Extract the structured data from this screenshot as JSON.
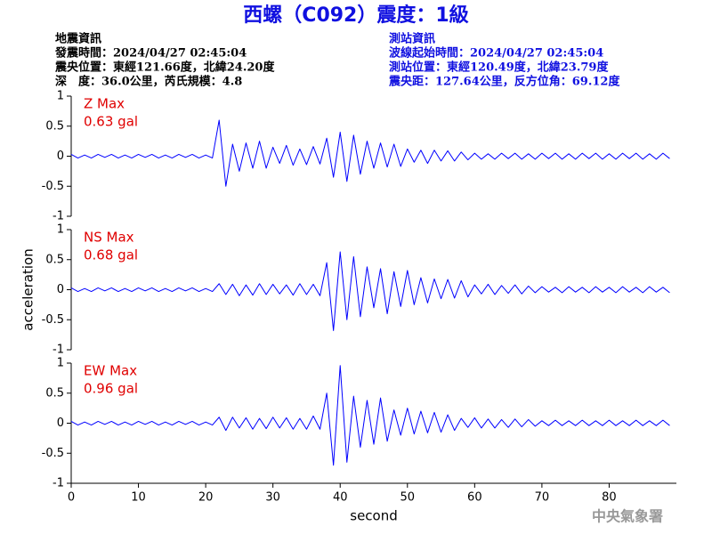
{
  "header": {
    "title": "西螺（C092）震度：1級",
    "left": [
      "地震資訊",
      "發震時間：2024/04/27 02:45:04",
      "震央位置：東經121.66度，北緯24.20度",
      "深　度：36.0公里，芮氏規模：4.8"
    ],
    "right": [
      "測站資訊",
      "波線起始時間：2024/04/27 02:45:04",
      "測站位置：東經120.49度，北緯23.79度",
      "震央距：127.64公里，反方位角：69.12度"
    ]
  },
  "credit": "中央氣象署",
  "chart_data": [
    {
      "type": "line",
      "annotation": [
        "Z Max",
        "0.63 gal"
      ],
      "color": "#0000ff",
      "xlim": [
        0,
        90
      ],
      "ylim": [
        -1,
        1
      ],
      "yticks": [
        -1,
        -0.5,
        0,
        0.5,
        1
      ],
      "x": [
        0,
        1,
        2,
        3,
        4,
        5,
        6,
        7,
        8,
        9,
        10,
        11,
        12,
        13,
        14,
        15,
        16,
        17,
        18,
        19,
        20,
        21,
        22,
        23,
        24,
        25,
        26,
        27,
        28,
        29,
        30,
        31,
        32,
        33,
        34,
        35,
        36,
        37,
        38,
        39,
        40,
        41,
        42,
        43,
        44,
        45,
        46,
        47,
        48,
        49,
        50,
        51,
        52,
        53,
        54,
        55,
        56,
        57,
        58,
        59,
        60,
        61,
        62,
        63,
        64,
        65,
        66,
        67,
        68,
        69,
        70,
        71,
        72,
        73,
        74,
        75,
        76,
        77,
        78,
        79,
        80,
        81,
        82,
        83,
        84,
        85,
        86,
        87,
        88,
        89
      ],
      "values": [
        0.03,
        -0.03,
        0.02,
        -0.03,
        0.03,
        -0.02,
        0.03,
        -0.03,
        0.02,
        -0.03,
        0.03,
        -0.02,
        0.03,
        -0.03,
        0.02,
        -0.03,
        0.03,
        -0.02,
        0.03,
        -0.03,
        0.02,
        -0.03,
        0.6,
        -0.5,
        0.2,
        -0.25,
        0.22,
        -0.2,
        0.25,
        -0.2,
        0.15,
        -0.12,
        0.18,
        -0.15,
        0.12,
        -0.14,
        0.16,
        -0.13,
        0.3,
        -0.35,
        0.4,
        -0.42,
        0.35,
        -0.3,
        0.25,
        -0.2,
        0.22,
        -0.18,
        0.2,
        -0.17,
        0.12,
        -0.1,
        0.1,
        -0.12,
        0.1,
        -0.08,
        0.09,
        -0.08,
        0.07,
        -0.06,
        0.05,
        -0.05,
        0.04,
        -0.05,
        0.05,
        -0.04,
        0.05,
        -0.05,
        0.04,
        -0.05,
        0.05,
        -0.04,
        0.05,
        -0.05,
        0.04,
        -0.05,
        0.05,
        -0.04,
        0.05,
        -0.05,
        0.04,
        -0.05,
        0.05,
        -0.04,
        0.05,
        -0.05,
        0.04,
        -0.05,
        0.05,
        -0.04
      ]
    },
    {
      "type": "line",
      "annotation": [
        "NS Max",
        "0.68 gal"
      ],
      "ylabel": "acceleration",
      "color": "#0000ff",
      "xlim": [
        0,
        90
      ],
      "ylim": [
        -1,
        1
      ],
      "yticks": [
        -1,
        -0.5,
        0,
        0.5,
        1
      ],
      "x": [
        0,
        1,
        2,
        3,
        4,
        5,
        6,
        7,
        8,
        9,
        10,
        11,
        12,
        13,
        14,
        15,
        16,
        17,
        18,
        19,
        20,
        21,
        22,
        23,
        24,
        25,
        26,
        27,
        28,
        29,
        30,
        31,
        32,
        33,
        34,
        35,
        36,
        37,
        38,
        39,
        40,
        41,
        42,
        43,
        44,
        45,
        46,
        47,
        48,
        49,
        50,
        51,
        52,
        53,
        54,
        55,
        56,
        57,
        58,
        59,
        60,
        61,
        62,
        63,
        64,
        65,
        66,
        67,
        68,
        69,
        70,
        71,
        72,
        73,
        74,
        75,
        76,
        77,
        78,
        79,
        80,
        81,
        82,
        83,
        84,
        85,
        86,
        87,
        88,
        89
      ],
      "values": [
        0.03,
        -0.03,
        0.02,
        -0.03,
        0.03,
        -0.02,
        0.03,
        -0.03,
        0.02,
        -0.03,
        0.03,
        -0.02,
        0.03,
        -0.03,
        0.02,
        -0.03,
        0.03,
        -0.02,
        0.03,
        -0.03,
        0.02,
        -0.03,
        0.1,
        -0.08,
        0.09,
        -0.1,
        0.08,
        -0.09,
        0.1,
        -0.08,
        0.09,
        -0.07,
        0.08,
        -0.09,
        0.1,
        -0.08,
        0.09,
        -0.1,
        0.45,
        -0.68,
        0.63,
        -0.5,
        0.55,
        -0.45,
        0.38,
        -0.3,
        0.35,
        -0.4,
        0.3,
        -0.28,
        0.32,
        -0.25,
        0.2,
        -0.22,
        0.18,
        -0.15,
        0.17,
        -0.14,
        0.15,
        -0.12,
        0.08,
        -0.07,
        0.09,
        -0.08,
        0.07,
        -0.06,
        0.08,
        -0.07,
        0.06,
        -0.05,
        0.05,
        -0.04,
        0.04,
        -0.05,
        0.05,
        -0.04,
        0.04,
        -0.05,
        0.05,
        -0.04,
        0.04,
        -0.05,
        0.05,
        -0.04,
        0.04,
        -0.05,
        0.05,
        -0.04,
        0.04,
        -0.05
      ]
    },
    {
      "type": "line",
      "annotation": [
        "EW Max",
        "0.96 gal"
      ],
      "xlabel": "second",
      "color": "#0000ff",
      "xlim": [
        0,
        90
      ],
      "xticks": [
        0,
        10,
        20,
        30,
        40,
        50,
        60,
        70,
        80
      ],
      "ylim": [
        -1,
        1
      ],
      "yticks": [
        -1,
        -0.5,
        0,
        0.5,
        1
      ],
      "x": [
        0,
        1,
        2,
        3,
        4,
        5,
        6,
        7,
        8,
        9,
        10,
        11,
        12,
        13,
        14,
        15,
        16,
        17,
        18,
        19,
        20,
        21,
        22,
        23,
        24,
        25,
        26,
        27,
        28,
        29,
        30,
        31,
        32,
        33,
        34,
        35,
        36,
        37,
        38,
        39,
        40,
        41,
        42,
        43,
        44,
        45,
        46,
        47,
        48,
        49,
        50,
        51,
        52,
        53,
        54,
        55,
        56,
        57,
        58,
        59,
        60,
        61,
        62,
        63,
        64,
        65,
        66,
        67,
        68,
        69,
        70,
        71,
        72,
        73,
        74,
        75,
        76,
        77,
        78,
        79,
        80,
        81,
        82,
        83,
        84,
        85,
        86,
        87,
        88,
        89
      ],
      "values": [
        0.03,
        -0.03,
        0.02,
        -0.03,
        0.03,
        -0.02,
        0.03,
        -0.03,
        0.02,
        -0.03,
        0.03,
        -0.02,
        0.03,
        -0.03,
        0.02,
        -0.03,
        0.03,
        -0.02,
        0.03,
        -0.03,
        0.02,
        -0.03,
        0.1,
        -0.12,
        0.1,
        -0.08,
        0.09,
        -0.1,
        0.08,
        -0.09,
        0.1,
        -0.08,
        0.09,
        -0.1,
        0.08,
        -0.1,
        0.12,
        -0.1,
        0.5,
        -0.7,
        0.96,
        -0.65,
        0.45,
        -0.4,
        0.38,
        -0.35,
        0.42,
        -0.3,
        0.22,
        -0.2,
        0.25,
        -0.18,
        0.2,
        -0.16,
        0.18,
        -0.15,
        0.14,
        -0.12,
        0.08,
        -0.07,
        0.09,
        -0.08,
        0.07,
        -0.08,
        0.06,
        -0.07,
        0.07,
        -0.06,
        0.06,
        -0.05,
        0.04,
        -0.04,
        0.05,
        -0.04,
        0.04,
        -0.04,
        0.05,
        -0.04,
        0.04,
        -0.04,
        0.05,
        -0.04,
        0.04,
        -0.04,
        0.05,
        -0.04,
        0.04,
        -0.04,
        0.05,
        -0.04
      ]
    }
  ]
}
